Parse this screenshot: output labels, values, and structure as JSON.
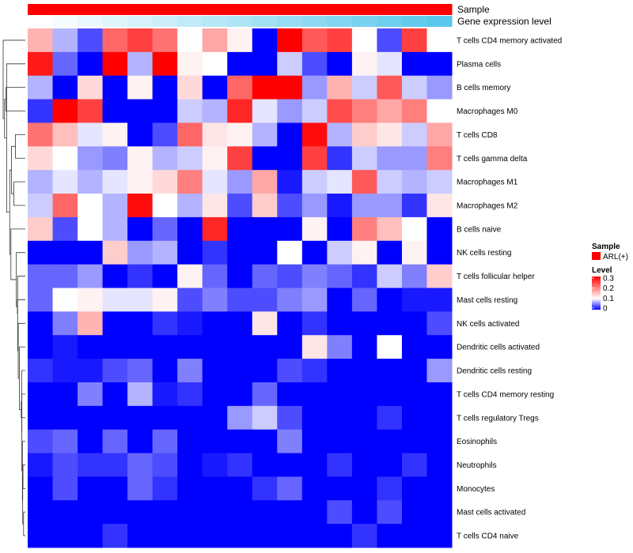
{
  "chart_data": {
    "type": "heatmap",
    "title": "",
    "annotations": [
      {
        "name": "Sample",
        "color": "#ff0000"
      },
      {
        "name": "Gene expression level",
        "colors": [
          "#ffffff",
          "#5ac8ec"
        ]
      }
    ],
    "rows": [
      "T cells CD4 memory activated",
      "Plasma cells",
      "B cells memory",
      "Macrophages M0",
      "T cells CD8",
      "T cells gamma delta",
      "Macrophages M1",
      "Macrophages M2",
      "B cells naive",
      "NK cells resting",
      "T cells follicular helper",
      "Mast cells resting",
      "NK cells activated",
      "Dendritic cells activated",
      "Dendritic cells resting",
      "T cells CD4 memory resting",
      "T cells regulatory  Tregs",
      "Eosinophils",
      "Neutrophils",
      "Monocytes",
      "Mast cells activated",
      "T cells CD4 naive"
    ],
    "values": [
      [
        0.16,
        0.07,
        0.03,
        0.22,
        0.25,
        0.21,
        0.1,
        0.17,
        0.11,
        0.0,
        0.33,
        0.23,
        0.25,
        0.1,
        0.03,
        0.25,
        0.1
      ],
      [
        0.28,
        0.04,
        0.0,
        0.32,
        0.07,
        0.33,
        0.11,
        0.1,
        0.0,
        0.0,
        0.08,
        0.03,
        0.0,
        0.11,
        0.09,
        0.0,
        0.0
      ],
      [
        0.07,
        0.0,
        0.13,
        0.0,
        0.11,
        0.0,
        0.13,
        0.0,
        0.22,
        0.33,
        0.33,
        0.06,
        0.16,
        0.08,
        0.23,
        0.08,
        0.06
      ],
      [
        0.02,
        0.33,
        0.25,
        0.0,
        0.0,
        0.0,
        0.08,
        0.07,
        0.27,
        0.09,
        0.06,
        0.08,
        0.24,
        0.2,
        0.17,
        0.2,
        0.1
      ],
      [
        0.21,
        0.15,
        0.09,
        0.11,
        0.0,
        0.03,
        0.22,
        0.12,
        0.11,
        0.07,
        0.0,
        0.29,
        0.07,
        0.14,
        0.12,
        0.08,
        0.17
      ],
      [
        0.13,
        0.1,
        0.06,
        0.05,
        0.11,
        0.07,
        0.08,
        0.11,
        0.25,
        0.0,
        0.0,
        0.25,
        0.02,
        0.08,
        0.06,
        0.06,
        0.2
      ],
      [
        0.07,
        0.09,
        0.07,
        0.09,
        0.11,
        0.13,
        0.2,
        0.09,
        0.06,
        0.17,
        0.01,
        0.08,
        0.09,
        0.23,
        0.08,
        0.07,
        0.08
      ],
      [
        0.08,
        0.22,
        0.1,
        0.07,
        0.29,
        0.1,
        0.07,
        0.12,
        0.03,
        0.14,
        0.03,
        0.06,
        0.01,
        0.06,
        0.06,
        0.02,
        0.12
      ],
      [
        0.14,
        0.03,
        0.1,
        0.07,
        0.0,
        0.04,
        0.0,
        0.27,
        0.0,
        0.0,
        0.0,
        0.11,
        0.0,
        0.2,
        0.15,
        0.1,
        0.0
      ],
      [
        0.0,
        0.0,
        0.0,
        0.14,
        0.06,
        0.07,
        0.0,
        0.02,
        0.0,
        0.0,
        0.1,
        0.0,
        0.08,
        0.11,
        0.0,
        0.11,
        0.0
      ],
      [
        0.04,
        0.04,
        0.06,
        0.0,
        0.02,
        0.0,
        0.11,
        0.04,
        0.0,
        0.04,
        0.03,
        0.05,
        0.04,
        0.02,
        0.08,
        0.05,
        0.14
      ],
      [
        0.04,
        0.1,
        0.11,
        0.09,
        0.09,
        0.11,
        0.03,
        0.05,
        0.03,
        0.03,
        0.05,
        0.06,
        0.0,
        0.04,
        0.0,
        0.01,
        0.01
      ],
      [
        0.0,
        0.05,
        0.16,
        0.0,
        0.0,
        0.02,
        0.01,
        0.0,
        0.0,
        0.12,
        0.0,
        0.02,
        0.0,
        0.0,
        0.0,
        0.0,
        0.03
      ],
      [
        0.0,
        0.01,
        0.0,
        0.0,
        0.0,
        0.0,
        0.0,
        0.0,
        0.0,
        0.0,
        0.0,
        0.12,
        0.05,
        0.0,
        0.1,
        0.0,
        0.0
      ],
      [
        0.02,
        0.01,
        0.01,
        0.03,
        0.04,
        0.0,
        0.05,
        0.0,
        0.0,
        0.0,
        0.03,
        0.02,
        0.0,
        0.0,
        0.0,
        0.0,
        0.06
      ],
      [
        0.0,
        0.0,
        0.05,
        0.0,
        0.07,
        0.01,
        0.02,
        0.0,
        0.0,
        0.04,
        0.0,
        0.0,
        0.0,
        0.0,
        0.0,
        0.0,
        0.0
      ],
      [
        0.0,
        0.0,
        0.0,
        0.0,
        0.0,
        0.0,
        0.0,
        0.0,
        0.06,
        0.08,
        0.03,
        0.0,
        0.0,
        0.0,
        0.02,
        0.0,
        0.0
      ],
      [
        0.03,
        0.04,
        0.0,
        0.04,
        0.0,
        0.04,
        0.0,
        0.0,
        0.0,
        0.0,
        0.05,
        0.0,
        0.0,
        0.0,
        0.0,
        0.0,
        0.0
      ],
      [
        0.01,
        0.03,
        0.02,
        0.02,
        0.04,
        0.03,
        0.0,
        0.01,
        0.02,
        0.0,
        0.0,
        0.0,
        0.02,
        0.0,
        0.0,
        0.02,
        0.0
      ],
      [
        0.0,
        0.03,
        0.0,
        0.0,
        0.04,
        0.02,
        0.0,
        0.0,
        0.0,
        0.02,
        0.04,
        0.0,
        0.0,
        0.0,
        0.02,
        0.0,
        0.0
      ],
      [
        0.0,
        0.0,
        0.0,
        0.0,
        0.0,
        0.0,
        0.0,
        0.0,
        0.0,
        0.0,
        0.0,
        0.0,
        0.03,
        0.0,
        0.03,
        0.0,
        0.0
      ],
      [
        0.0,
        0.0,
        0.0,
        0.02,
        0.0,
        0.0,
        0.0,
        0.0,
        0.0,
        0.0,
        0.0,
        0.0,
        0.0,
        0.02,
        0.0,
        0.0,
        0.0
      ]
    ],
    "color_scale": {
      "min": 0,
      "mid": 0.1,
      "max": 0.3,
      "colors": [
        "#0000ff",
        "#ffffff",
        "#ff0000"
      ]
    },
    "legend": {
      "sample_title": "Sample",
      "sample_entry": "ARL(+)",
      "level_title": "Level",
      "ticks": [
        0.3,
        0.2,
        0.1,
        0
      ],
      "tick_labels": [
        "0.3",
        "0.2",
        "0.1",
        "0"
      ]
    },
    "dendrogram": "row",
    "legend_position": "right"
  }
}
